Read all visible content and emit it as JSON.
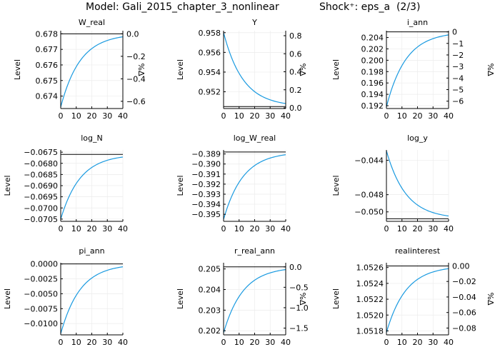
{
  "figure": {
    "model_title": "Model: Gali_2015_chapter_3_nonlinear",
    "shock_title": "Shock⁺: eps_a  (2/3)"
  },
  "colors": {
    "line": "#1a9ae0",
    "axis": "#000000",
    "grid": "#ececec"
  },
  "chart_data": [
    {
      "type": "line",
      "title": "W_real",
      "ylabel": "Level",
      "y2label": "%Δ",
      "xlim": [
        0,
        40
      ],
      "ylim": [
        0.6732,
        0.6782
      ],
      "steady": 0.678,
      "y0": 0.6733,
      "decay": 0.08,
      "xticks": [
        0,
        10,
        20,
        30,
        40
      ],
      "yticks": [
        0.674,
        0.675,
        0.676,
        0.677,
        0.678
      ],
      "yticklabels": [
        "0.674",
        "0.675",
        "0.676",
        "0.677",
        "0.678"
      ],
      "y2ticks": [
        0.0,
        -0.2,
        -0.4,
        -0.6
      ],
      "y2ticklabels": [
        "0.0",
        "−0.2",
        "−0.4",
        "−0.6"
      ]
    },
    {
      "type": "line",
      "title": "Y",
      "ylabel": "Level",
      "y2label": "%Δ",
      "xlim": [
        0,
        40
      ],
      "ylim": [
        0.9503,
        0.9582
      ],
      "steady": 0.9505,
      "y0": 0.958,
      "decay": 0.08,
      "xticks": [
        0,
        10,
        20,
        30,
        40
      ],
      "yticks": [
        0.952,
        0.954,
        0.956,
        0.958
      ],
      "yticklabels": [
        "0.952",
        "0.954",
        "0.956",
        "0.958"
      ],
      "y2ticks": [
        0.0,
        0.2,
        0.4,
        0.6,
        0.8
      ],
      "y2ticklabels": [
        "0.0",
        "0.2",
        "0.4",
        "0.6",
        "0.8"
      ]
    },
    {
      "type": "line",
      "title": "i_ann",
      "ylabel": "Level",
      "y2label": "%Δ",
      "xlim": [
        0,
        40
      ],
      "ylim": [
        0.1915,
        0.2052
      ],
      "steady": 0.205,
      "y0": 0.1918,
      "decay": 0.08,
      "xticks": [
        0,
        10,
        20,
        30,
        40
      ],
      "yticks": [
        0.192,
        0.194,
        0.196,
        0.198,
        0.2,
        0.202,
        0.204
      ],
      "yticklabels": [
        "0.192",
        "0.194",
        "0.196",
        "0.198",
        "0.200",
        "0.202",
        "0.204"
      ],
      "y2ticks": [
        0,
        -1,
        -2,
        -3,
        -4,
        -5,
        -6
      ],
      "y2ticklabels": [
        "0",
        "−1",
        "−2",
        "−3",
        "−4",
        "−5",
        "−6"
      ]
    },
    {
      "type": "line",
      "title": "log_N",
      "ylabel": "Level",
      "y2label": "",
      "xlim": [
        0,
        40
      ],
      "ylim": [
        -0.0706,
        -0.0674
      ],
      "steady": -0.0676,
      "y0": -0.0705,
      "decay": 0.08,
      "xticks": [
        0,
        10,
        20,
        30,
        40
      ],
      "yticks": [
        -0.0675,
        -0.068,
        -0.0685,
        -0.069,
        -0.0695,
        -0.07,
        -0.0705
      ],
      "yticklabels": [
        "−0.0675",
        "−0.0680",
        "−0.0685",
        "−0.0690",
        "−0.0695",
        "−0.0700",
        "−0.0705"
      ],
      "y2ticks": [],
      "y2ticklabels": []
    },
    {
      "type": "line",
      "title": "log_W_real",
      "ylabel": "Level",
      "y2label": "",
      "xlim": [
        0,
        40
      ],
      "ylim": [
        -0.3957,
        -0.3886
      ],
      "steady": -0.3888,
      "y0": -0.3955,
      "decay": 0.08,
      "xticks": [
        0,
        10,
        20,
        30,
        40
      ],
      "yticks": [
        -0.389,
        -0.39,
        -0.391,
        -0.392,
        -0.393,
        -0.394,
        -0.395
      ],
      "yticklabels": [
        "−0.389",
        "−0.390",
        "−0.391",
        "−0.392",
        "−0.393",
        "−0.394",
        "−0.395"
      ],
      "y2ticks": [],
      "y2ticklabels": []
    },
    {
      "type": "line",
      "title": "log_y",
      "ylabel": "Level",
      "y2label": "",
      "xlim": [
        0,
        40
      ],
      "ylim": [
        -0.0511,
        -0.0428
      ],
      "steady": -0.0508,
      "y0": -0.0429,
      "decay": 0.08,
      "xticks": [
        0,
        10,
        20,
        30,
        40
      ],
      "yticks": [
        -0.044,
        -0.048,
        -0.05
      ],
      "yticklabels": [
        "−0.044",
        "−0.048",
        "−0.050"
      ],
      "y2ticks": [],
      "y2ticklabels": []
    },
    {
      "type": "line",
      "title": "pi_ann",
      "ylabel": "Level",
      "y2label": "",
      "xlim": [
        0,
        40
      ],
      "ylim": [
        -0.0119,
        0.0002
      ],
      "steady": 0.0,
      "y0": -0.0117,
      "decay": 0.08,
      "xticks": [
        0,
        10,
        20,
        30,
        40
      ],
      "yticks": [
        0.0,
        -0.0025,
        -0.005,
        -0.0075,
        -0.01
      ],
      "yticklabels": [
        "0.0000",
        "−0.0025",
        "−0.0050",
        "−0.0075",
        "−0.0100"
      ],
      "y2ticks": [],
      "y2ticklabels": []
    },
    {
      "type": "line",
      "title": "r_real_ann",
      "ylabel": "Level",
      "y2label": "%Δ",
      "xlim": [
        0,
        40
      ],
      "ylim": [
        0.2018,
        0.2053
      ],
      "steady": 0.2051,
      "y0": 0.2019,
      "decay": 0.08,
      "xticks": [
        0,
        10,
        20,
        30,
        40
      ],
      "yticks": [
        0.202,
        0.203,
        0.204,
        0.205
      ],
      "yticklabels": [
        "0.202",
        "0.203",
        "0.204",
        "0.205"
      ],
      "y2ticks": [
        0.0,
        -0.5,
        -1.0,
        -1.5
      ],
      "y2ticklabels": [
        "0.0",
        "−0.5",
        "−1.0",
        "−1.5"
      ]
    },
    {
      "type": "line",
      "title": "realinterest",
      "ylabel": "Level",
      "y2label": "%Δ",
      "xlim": [
        0,
        40
      ],
      "ylim": [
        1.05175,
        1.05266
      ],
      "steady": 1.05262,
      "y0": 1.05178,
      "decay": 0.08,
      "xticks": [
        0,
        10,
        20,
        30,
        40
      ],
      "yticks": [
        1.0518,
        1.052,
        1.0522,
        1.0524,
        1.0526
      ],
      "yticklabels": [
        "1.0518",
        "1.0520",
        "1.0522",
        "1.0524",
        "1.0526"
      ],
      "y2ticks": [
        0.0,
        -0.02,
        -0.04,
        -0.06,
        -0.08
      ],
      "y2ticklabels": [
        "0.00",
        "−0.02",
        "−0.04",
        "−0.06",
        "−0.08"
      ]
    }
  ]
}
